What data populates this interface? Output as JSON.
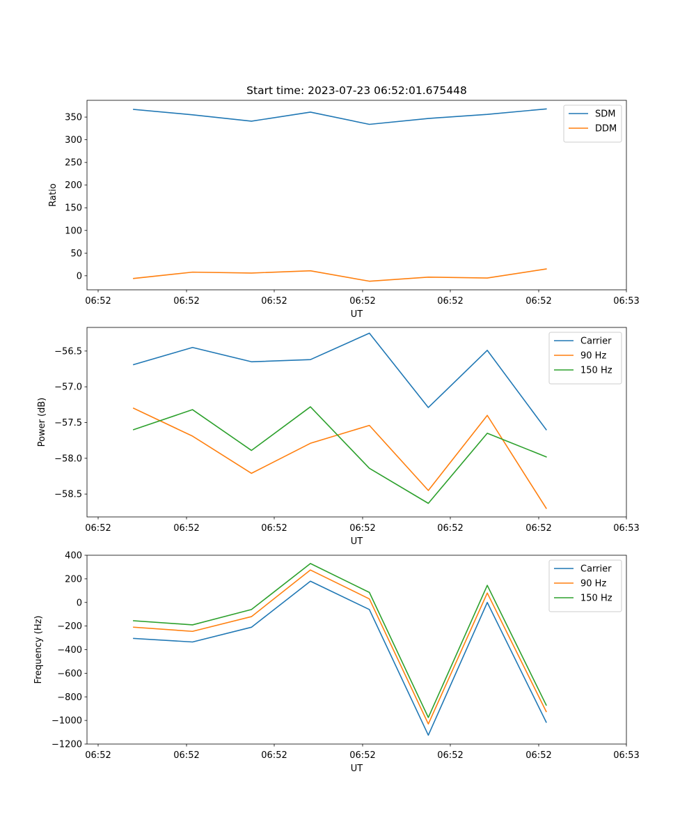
{
  "figure_title": "Start time: 2023-07-23 06:52:01.675448",
  "chart_data": [
    {
      "type": "line",
      "title": "Start time: 2023-07-23 06:52:01.675448",
      "xlabel": "UT",
      "ylabel": "Ratio",
      "x_tick_labels": [
        "06:52",
        "06:52",
        "06:52",
        "06:52",
        "06:52",
        "06:52",
        "06:53"
      ],
      "yticks": [
        0,
        50,
        100,
        150,
        200,
        250,
        300,
        350
      ],
      "ylim": [
        -31,
        387
      ],
      "x_index": [
        1,
        2,
        3,
        4,
        5,
        6,
        7,
        8
      ],
      "xlim": [
        0.21,
        9.36
      ],
      "legend_position": "top-right",
      "series": [
        {
          "name": "SDM",
          "color": "#1f77b4",
          "values": [
            367,
            355,
            341,
            361,
            334,
            347,
            356,
            368
          ]
        },
        {
          "name": "DDM",
          "color": "#ff7f0e",
          "values": [
            -6,
            8,
            6,
            11,
            -12,
            -3,
            -5,
            15
          ]
        }
      ]
    },
    {
      "type": "line",
      "title": "",
      "xlabel": "UT",
      "ylabel": "Power (dB)",
      "x_tick_labels": [
        "06:52",
        "06:52",
        "06:52",
        "06:52",
        "06:52",
        "06:52",
        "06:53"
      ],
      "yticks": [
        -58.5,
        -58.0,
        -57.5,
        -57.0,
        -56.5
      ],
      "ytick_labels": [
        "−58.5",
        "−58.0",
        "−57.5",
        "−57.0",
        "−56.5"
      ],
      "ylim": [
        -58.82,
        -56.17
      ],
      "x_index": [
        1,
        2,
        3,
        4,
        5,
        6,
        7,
        8
      ],
      "xlim": [
        0.21,
        9.36
      ],
      "legend_position": "top-right",
      "series": [
        {
          "name": "Carrier",
          "color": "#1f77b4",
          "values": [
            -56.69,
            -56.45,
            -56.65,
            -56.62,
            -56.25,
            -57.29,
            -56.49,
            -57.6
          ]
        },
        {
          "name": "90 Hz",
          "color": "#ff7f0e",
          "values": [
            -57.3,
            -57.69,
            -58.21,
            -57.79,
            -57.54,
            -58.45,
            -57.4,
            -58.7
          ]
        },
        {
          "name": "150 Hz",
          "color": "#2ca02c",
          "values": [
            -57.6,
            -57.32,
            -57.89,
            -57.28,
            -58.14,
            -58.63,
            -57.65,
            -57.98
          ]
        }
      ]
    },
    {
      "type": "line",
      "title": "",
      "xlabel": "UT",
      "ylabel": "Frequency (Hz)",
      "x_tick_labels": [
        "06:52",
        "06:52",
        "06:52",
        "06:52",
        "06:52",
        "06:52",
        "06:53"
      ],
      "yticks": [
        -1200,
        -1000,
        -800,
        -600,
        -400,
        -200,
        0,
        200,
        400
      ],
      "ytick_labels": [
        "−1200",
        "−1000",
        "−800",
        "−600",
        "−400",
        "−200",
        "0",
        "200",
        "400"
      ],
      "ylim": [
        -1200,
        400
      ],
      "x_index": [
        1,
        2,
        3,
        4,
        5,
        6,
        7,
        8
      ],
      "xlim": [
        0.21,
        9.36
      ],
      "legend_position": "top-right",
      "series": [
        {
          "name": "Carrier",
          "color": "#1f77b4",
          "values": [
            -305,
            -335,
            -210,
            180,
            -60,
            -1125,
            0,
            -1015
          ]
        },
        {
          "name": "90 Hz",
          "color": "#ff7f0e",
          "values": [
            -210,
            -245,
            -120,
            275,
            30,
            -1030,
            80,
            -925
          ]
        },
        {
          "name": "150 Hz",
          "color": "#2ca02c",
          "values": [
            -155,
            -190,
            -60,
            330,
            85,
            -975,
            145,
            -870
          ]
        }
      ]
    }
  ]
}
